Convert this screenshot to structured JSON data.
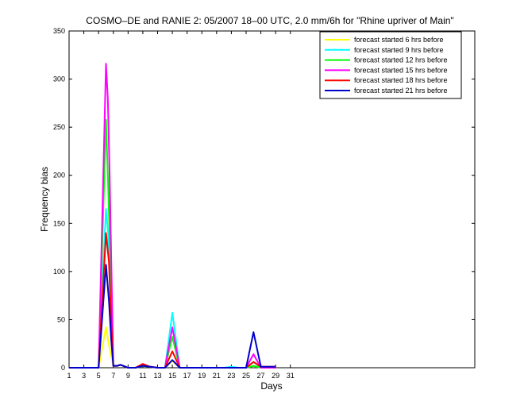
{
  "chart_data": {
    "type": "line",
    "title": "COSMO–DE and RANIE 2: 05/2007 18–00 UTC, 2.0 mm/6h for \"Rhine upriver of Main\"",
    "xlabel": "Days",
    "ylabel": "Frequency bias",
    "xlim": [
      1,
      56
    ],
    "ylim": [
      0,
      350
    ],
    "xticks": [
      1,
      3,
      5,
      7,
      9,
      11,
      13,
      15,
      17,
      19,
      21,
      23,
      25,
      27,
      29,
      31
    ],
    "yticks": [
      0,
      50,
      100,
      150,
      200,
      250,
      300,
      350
    ],
    "grid": false,
    "legend_position": "top-right",
    "series": [
      {
        "name": "forecast started 6 hrs before",
        "color": "#ffff00",
        "points": [
          [
            1,
            0
          ],
          [
            2,
            0
          ],
          [
            3,
            0
          ],
          [
            4,
            0
          ],
          [
            5,
            0
          ],
          [
            6,
            42
          ],
          [
            6.5,
            20
          ],
          [
            7,
            2
          ],
          [
            7.5,
            2
          ],
          [
            8,
            3
          ],
          [
            9,
            0
          ],
          [
            10,
            0
          ],
          [
            11,
            2
          ],
          [
            12,
            1
          ],
          [
            13,
            0
          ],
          [
            14,
            0
          ],
          [
            15,
            7
          ],
          [
            16,
            0
          ],
          [
            17,
            0
          ],
          [
            18,
            0
          ],
          [
            19,
            0
          ],
          [
            20,
            0
          ],
          [
            21,
            0
          ],
          [
            22,
            0
          ],
          [
            23,
            0
          ],
          [
            24,
            0
          ],
          [
            25,
            0
          ],
          [
            26,
            2
          ],
          [
            27,
            0
          ],
          [
            28,
            0
          ],
          [
            29,
            0
          ]
        ]
      },
      {
        "name": "forecast started 9 hrs before",
        "color": "#00ffff",
        "points": [
          [
            1,
            0
          ],
          [
            2,
            0
          ],
          [
            3,
            0
          ],
          [
            4,
            0
          ],
          [
            5,
            0
          ],
          [
            6,
            165
          ],
          [
            6.3,
            140
          ],
          [
            6.6,
            80
          ],
          [
            7,
            2
          ],
          [
            7.5,
            2
          ],
          [
            8,
            3
          ],
          [
            9,
            0
          ],
          [
            10,
            0
          ],
          [
            11,
            2
          ],
          [
            12,
            1
          ],
          [
            13,
            0
          ],
          [
            14,
            0
          ],
          [
            15,
            57
          ],
          [
            16,
            0
          ],
          [
            17,
            0
          ],
          [
            18,
            0
          ],
          [
            19,
            0
          ],
          [
            20,
            0
          ],
          [
            21,
            0
          ],
          [
            22,
            0
          ],
          [
            23,
            1
          ],
          [
            24,
            0
          ],
          [
            25,
            0
          ],
          [
            26,
            6
          ],
          [
            27,
            0
          ],
          [
            28,
            0
          ],
          [
            29,
            0
          ]
        ]
      },
      {
        "name": "forecast started 12 hrs before",
        "color": "#00ff00",
        "points": [
          [
            1,
            0
          ],
          [
            2,
            0
          ],
          [
            3,
            0
          ],
          [
            4,
            0
          ],
          [
            5,
            0
          ],
          [
            6,
            258
          ],
          [
            6.3,
            190
          ],
          [
            6.6,
            110
          ],
          [
            7,
            2
          ],
          [
            7.5,
            2
          ],
          [
            8,
            3
          ],
          [
            9,
            0
          ],
          [
            10,
            0
          ],
          [
            11,
            2
          ],
          [
            12,
            1
          ],
          [
            13,
            0
          ],
          [
            14,
            0
          ],
          [
            15,
            32
          ],
          [
            16,
            0
          ],
          [
            17,
            0
          ],
          [
            18,
            0
          ],
          [
            19,
            0
          ],
          [
            20,
            0
          ],
          [
            21,
            0
          ],
          [
            22,
            0
          ],
          [
            23,
            0
          ],
          [
            24,
            0
          ],
          [
            25,
            0
          ],
          [
            26,
            2
          ],
          [
            27,
            0
          ],
          [
            28,
            0
          ],
          [
            29,
            0
          ]
        ]
      },
      {
        "name": "forecast started 15 hrs before",
        "color": "#ff00ff",
        "points": [
          [
            1,
            0
          ],
          [
            2,
            0
          ],
          [
            3,
            0
          ],
          [
            4,
            0
          ],
          [
            5,
            0
          ],
          [
            6,
            316
          ],
          [
            6.25,
            280
          ],
          [
            6.5,
            200
          ],
          [
            6.8,
            80
          ],
          [
            7,
            2
          ],
          [
            7.5,
            2
          ],
          [
            8,
            3
          ],
          [
            9,
            0
          ],
          [
            10,
            0
          ],
          [
            11,
            3
          ],
          [
            12,
            1
          ],
          [
            13,
            0
          ],
          [
            14,
            0
          ],
          [
            15,
            42
          ],
          [
            16,
            0
          ],
          [
            17,
            0
          ],
          [
            18,
            0
          ],
          [
            19,
            0
          ],
          [
            20,
            0
          ],
          [
            21,
            0
          ],
          [
            22,
            0
          ],
          [
            23,
            0
          ],
          [
            24,
            0
          ],
          [
            25,
            0
          ],
          [
            26,
            14
          ],
          [
            27,
            0
          ],
          [
            28,
            0
          ],
          [
            29,
            0
          ]
        ]
      },
      {
        "name": "forecast started 18 hrs before",
        "color": "#ff0000",
        "points": [
          [
            1,
            0
          ],
          [
            2,
            0
          ],
          [
            3,
            0
          ],
          [
            4,
            0
          ],
          [
            5,
            0
          ],
          [
            6,
            140
          ],
          [
            6.4,
            110
          ],
          [
            6.7,
            50
          ],
          [
            7,
            2
          ],
          [
            7.5,
            2
          ],
          [
            8,
            3
          ],
          [
            9,
            0
          ],
          [
            10,
            0
          ],
          [
            11,
            4
          ],
          [
            12,
            1
          ],
          [
            13,
            0
          ],
          [
            14,
            0
          ],
          [
            15,
            17
          ],
          [
            16,
            0
          ],
          [
            17,
            0
          ],
          [
            18,
            0
          ],
          [
            19,
            0
          ],
          [
            20,
            0
          ],
          [
            21,
            0
          ],
          [
            22,
            0
          ],
          [
            23,
            0
          ],
          [
            24,
            0
          ],
          [
            25,
            0
          ],
          [
            26,
            6
          ],
          [
            27,
            1
          ],
          [
            28,
            1
          ],
          [
            29,
            1
          ]
        ]
      },
      {
        "name": "forecast started 21 hrs before",
        "color": "#0000cc",
        "points": [
          [
            1,
            0
          ],
          [
            2,
            0
          ],
          [
            3,
            0
          ],
          [
            4,
            0
          ],
          [
            5,
            0
          ],
          [
            6,
            107
          ],
          [
            6.4,
            70
          ],
          [
            6.7,
            30
          ],
          [
            7,
            2
          ],
          [
            7.5,
            2
          ],
          [
            8,
            3
          ],
          [
            9,
            0
          ],
          [
            10,
            0
          ],
          [
            11,
            2
          ],
          [
            12,
            1
          ],
          [
            13,
            0
          ],
          [
            14,
            0
          ],
          [
            15,
            8
          ],
          [
            16,
            0
          ],
          [
            17,
            0
          ],
          [
            18,
            0
          ],
          [
            19,
            0
          ],
          [
            20,
            0
          ],
          [
            21,
            0
          ],
          [
            22,
            0
          ],
          [
            23,
            0
          ],
          [
            24,
            0
          ],
          [
            25,
            0
          ],
          [
            26,
            37
          ],
          [
            27,
            1
          ],
          [
            28,
            1
          ],
          [
            29,
            1
          ]
        ]
      }
    ]
  }
}
